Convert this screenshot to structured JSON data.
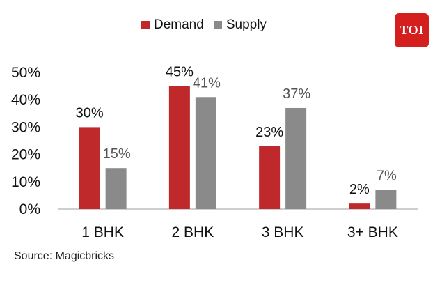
{
  "legend": {
    "demand_label": "Demand",
    "supply_label": "Supply"
  },
  "logo": {
    "text": "TOI"
  },
  "source": "Source: Magicbricks",
  "colors": {
    "demand": "#c0292b",
    "supply": "#8a8a8a",
    "axis": "#bdbdbd",
    "logo": "#d51f1f"
  },
  "chart_data": {
    "type": "bar",
    "categories": [
      "1 BHK",
      "2 BHK",
      "3 BHK",
      "3+ BHK"
    ],
    "series": [
      {
        "name": "Demand",
        "values": [
          30,
          45,
          23,
          2
        ],
        "labels": [
          "30%",
          "45%",
          "23%",
          "2%"
        ]
      },
      {
        "name": "Supply",
        "values": [
          15,
          41,
          37,
          7
        ],
        "labels": [
          "15%",
          "41%",
          "37%",
          "7%"
        ]
      }
    ],
    "ylim": [
      0,
      50
    ],
    "yticks": [
      0,
      10,
      20,
      30,
      40,
      50
    ],
    "ytick_labels": [
      "0%",
      "10%",
      "20%",
      "30%",
      "40%",
      "50%"
    ],
    "unit": "%",
    "xlabel": "",
    "ylabel": "",
    "legend_position": "top-center",
    "grid": false
  }
}
